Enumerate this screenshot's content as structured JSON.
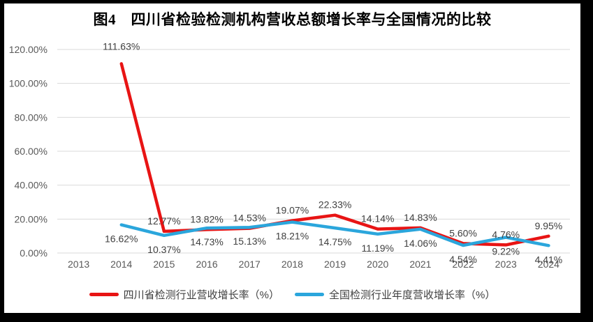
{
  "chart_data": {
    "type": "line",
    "title": "图4　四川省检验检测机构营收总额增长率与全国情况的比较",
    "categories": [
      "2013",
      "2014",
      "2015",
      "2016",
      "2017",
      "2018",
      "2019",
      "2020",
      "2021",
      "2022",
      "2023",
      "2024"
    ],
    "series": [
      {
        "slug": "sichuan",
        "name": "四川省检测行业营收增长率（%）",
        "color": "#e81414",
        "label_position": "above",
        "values": [
          null,
          111.63,
          12.77,
          13.82,
          14.53,
          19.07,
          22.33,
          14.14,
          14.83,
          5.6,
          4.76,
          9.95
        ]
      },
      {
        "slug": "national",
        "name": "全国检测行业年度营收增长率（%）",
        "color": "#2ba6dc",
        "label_position": "below",
        "values": [
          null,
          16.62,
          10.37,
          14.73,
          15.13,
          18.21,
          14.75,
          11.19,
          14.06,
          4.54,
          9.22,
          4.41
        ]
      }
    ],
    "xlabel": "",
    "ylabel": "",
    "ylim": [
      0,
      120
    ],
    "y_step": 20,
    "y_tick_suffix": "%",
    "y_tick_decimals": 2,
    "data_label_decimals": 2,
    "data_label_suffix": "%",
    "grid": true,
    "legend_position": "bottom"
  },
  "colors": {
    "grid": "#d9d9d9",
    "axis_text": "#595959",
    "data_label_text": "#404040",
    "title_text": "#000000",
    "chart_background": "#ffffff",
    "scan_border": "#000000"
  }
}
